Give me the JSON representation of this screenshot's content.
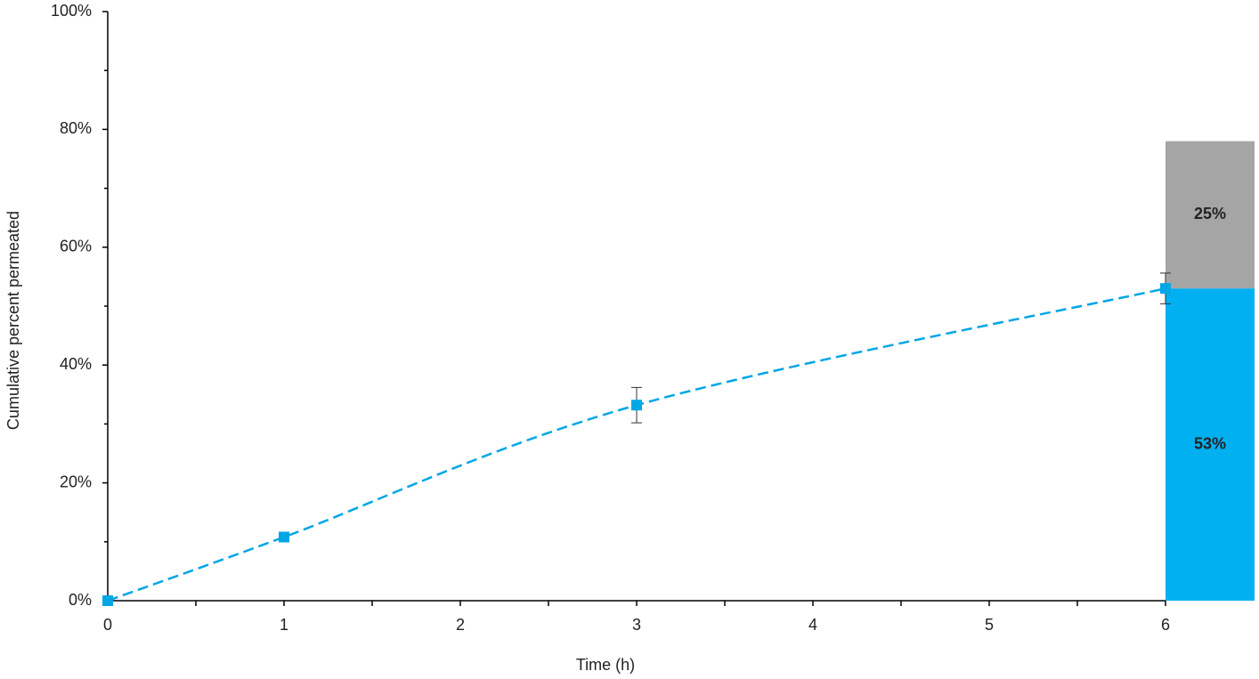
{
  "chart_data": {
    "type": "line",
    "x_label": "Time (h)",
    "y_label": "Cumulative percent permeated",
    "x": [
      0,
      1,
      3,
      6
    ],
    "series": [
      {
        "color": "#00a6e6",
        "values": [
          0,
          10.8,
          33.2,
          53
        ],
        "errors": [
          0,
          0.5,
          3,
          2.6
        ]
      }
    ],
    "stacked_bar": {
      "at": 6,
      "values": [
        53,
        25
      ],
      "value_labels": [
        "53%",
        "25%"
      ],
      "colors": [
        "#00b0f0",
        "#a5a5a5"
      ]
    },
    "xlim": [
      0,
      6
    ],
    "ylim": [
      0,
      100
    ],
    "xticks": [
      0,
      1,
      2,
      3,
      4,
      5,
      6
    ],
    "xminorticks": [
      0.5,
      1.5,
      2.5,
      3.5,
      4.5,
      5.5
    ],
    "yticks": [
      {
        "value": 0,
        "label": "0%"
      },
      {
        "value": 20,
        "label": "20%"
      },
      {
        "value": 40,
        "label": "40%"
      },
      {
        "value": 60,
        "label": "60%"
      },
      {
        "value": 80,
        "label": "80%"
      },
      {
        "value": 100,
        "label": "100%"
      }
    ],
    "yminorticks": [
      10,
      30,
      50,
      70,
      90
    ]
  }
}
